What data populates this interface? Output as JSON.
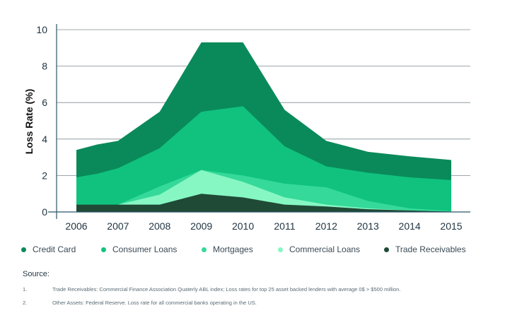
{
  "chart_data": {
    "type": "area",
    "stacked": false,
    "ylabel": "Loss Rate (%)",
    "xlabel": "",
    "ylim": [
      0,
      10
    ],
    "yticks": [
      0,
      2,
      4,
      6,
      8,
      10
    ],
    "grid": true,
    "x": [
      2006,
      2006.5,
      2007,
      2008,
      2009,
      2010,
      2011,
      2012,
      2013,
      2014,
      2015
    ],
    "xticks": [
      2006,
      2007,
      2008,
      2009,
      2010,
      2011,
      2012,
      2013,
      2014,
      2015
    ],
    "legend_position": "bottom",
    "series": [
      {
        "name": "Credit Card",
        "color": "#0a8a5a",
        "values": [
          3.4,
          3.7,
          3.9,
          5.5,
          9.3,
          9.3,
          5.6,
          3.9,
          3.3,
          3.05,
          2.85
        ]
      },
      {
        "name": "Consumer Loans",
        "color": "#10c27e",
        "values": [
          1.9,
          2.1,
          2.4,
          3.5,
          5.5,
          5.8,
          3.6,
          2.5,
          2.15,
          1.9,
          1.75
        ]
      },
      {
        "name": "Mortgages",
        "color": "#35d99a",
        "values": [
          null,
          null,
          0.4,
          1.4,
          2.3,
          2.0,
          1.55,
          1.35,
          0.6,
          0.2,
          0.05
        ]
      },
      {
        "name": "Commercial Loans",
        "color": "#86f7c3",
        "values": [
          null,
          null,
          0.4,
          0.95,
          2.3,
          1.65,
          0.8,
          0.4,
          0.2,
          0.08,
          0.02
        ]
      },
      {
        "name": "Trade Receivables",
        "color": "#1f4a36",
        "values": [
          0.4,
          0.4,
          0.4,
          0.4,
          1.0,
          0.8,
          0.4,
          0.3,
          0.15,
          0.08,
          0.02
        ]
      }
    ]
  },
  "legend": [
    {
      "label": "Credit Card",
      "color": "#0a8a5a"
    },
    {
      "label": "Consumer Loans",
      "color": "#10c27e"
    },
    {
      "label": "Mortgages",
      "color": "#35d99a"
    },
    {
      "label": "Commercial Loans",
      "color": "#86f7c3"
    },
    {
      "label": "Trade Receivables",
      "color": "#1f4a36"
    }
  ],
  "source": {
    "title": "Source:",
    "notes": [
      {
        "num": "1.",
        "text": "Trade Receivables: Commercial Finance Association Quaterly ABL index; Loss rates for top 25 asset backed lenders with average 0$ > $500 million."
      },
      {
        "num": "2.",
        "text": "Other Assets: Federal Reserve. Loss rate for all commercial banks operating in the US."
      }
    ]
  }
}
